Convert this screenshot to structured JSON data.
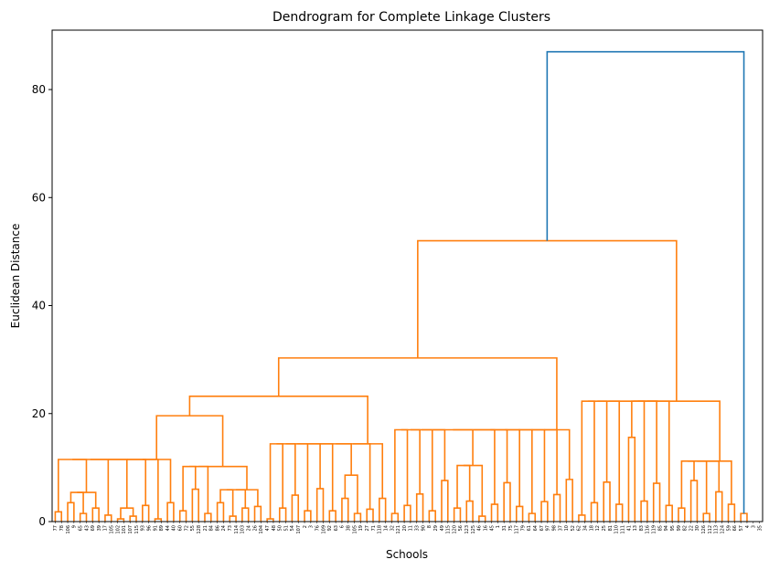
{
  "chart_data": {
    "type": "dendrogram",
    "title": "Dendrogram for Complete Linkage Clusters",
    "xlabel": "Schools",
    "ylabel": "Euclidean Distance",
    "ylim": [
      0,
      91
    ],
    "yticks": [
      0,
      20,
      40,
      60,
      80
    ],
    "grid": false,
    "colors": {
      "main_cluster": "#ff7f0e",
      "top_links": "#1f77b4"
    },
    "leaves": [
      "77",
      "78",
      "106",
      "9",
      "65",
      "43",
      "69",
      "39",
      "17",
      "105",
      "102",
      "101",
      "107",
      "115",
      "93",
      "96",
      "91",
      "89",
      "44",
      "40",
      "60",
      "72",
      "55",
      "128",
      "21",
      "84",
      "86",
      "24",
      "73",
      "114",
      "103",
      "24",
      "26",
      "104",
      "47",
      "48",
      "50",
      "51",
      "54",
      "107",
      "2",
      "3",
      "76",
      "109",
      "92",
      "63",
      "6",
      "38",
      "105",
      "19",
      "27",
      "71",
      "118",
      "14",
      "32",
      "121",
      "20",
      "11",
      "33",
      "90",
      "8",
      "29",
      "49",
      "115",
      "120",
      "56",
      "123",
      "125",
      "46",
      "16",
      "45",
      "1",
      "31",
      "75",
      "117",
      "79",
      "61",
      "64",
      "67",
      "97",
      "98",
      "37",
      "10",
      "52",
      "62",
      "34",
      "18",
      "12",
      "25",
      "81",
      "110",
      "111",
      "41",
      "13",
      "83",
      "116",
      "119",
      "85",
      "94",
      "95",
      "99",
      "82",
      "22",
      "30",
      "126",
      "112",
      "113",
      "124",
      "59",
      "66",
      "57",
      "4",
      "3",
      "35"
    ],
    "links": [
      {
        "left": 0,
        "right": 1,
        "height": 1.8
      },
      {
        "left": 2,
        "right": 3,
        "height": 3.5
      },
      {
        "left": 4,
        "right": 5,
        "height": 1.5
      },
      {
        "left": 6,
        "right": 7,
        "height": 2.5
      },
      {
        "left": 2,
        "right": 7,
        "height": 5.4
      },
      {
        "left": 8,
        "right": 9,
        "height": 1.2
      },
      {
        "left": 10,
        "right": 11,
        "height": 0.5
      },
      {
        "left": 12,
        "right": 13,
        "height": 1.0
      },
      {
        "left": 10,
        "right": 13,
        "height": 2.5
      },
      {
        "left": 14,
        "right": 15,
        "height": 3.0
      },
      {
        "left": 16,
        "right": 17,
        "height": 0.5
      },
      {
        "left": 18,
        "right": 19,
        "height": 3.5
      },
      {
        "left": 0,
        "right": 19,
        "height": 11.5
      },
      {
        "left": 20,
        "right": 21,
        "height": 2.0
      },
      {
        "left": 22,
        "right": 23,
        "height": 6.0
      },
      {
        "left": 24,
        "right": 25,
        "height": 1.5
      },
      {
        "left": 26,
        "right": 27,
        "height": 3.5
      },
      {
        "left": 28,
        "right": 29,
        "height": 1.0
      },
      {
        "left": 30,
        "right": 31,
        "height": 2.5
      },
      {
        "left": 32,
        "right": 33,
        "height": 2.8
      },
      {
        "left": 26,
        "right": 33,
        "height": 5.9
      },
      {
        "left": 20,
        "right": 33,
        "height": 10.2
      },
      {
        "left": 0,
        "right": 33,
        "height": 19.6
      },
      {
        "left": 34,
        "right": 35,
        "height": 0.5
      },
      {
        "left": 36,
        "right": 37,
        "height": 2.5
      },
      {
        "left": 38,
        "right": 39,
        "height": 4.9
      },
      {
        "left": 40,
        "right": 41,
        "height": 2.0
      },
      {
        "left": 42,
        "right": 43,
        "height": 6.1
      },
      {
        "left": 44,
        "right": 45,
        "height": 2.0
      },
      {
        "left": 46,
        "right": 47,
        "height": 4.3
      },
      {
        "left": 48,
        "right": 49,
        "height": 1.5
      },
      {
        "left": 46,
        "right": 49,
        "height": 8.6
      },
      {
        "left": 50,
        "right": 51,
        "height": 2.3
      },
      {
        "left": 52,
        "right": 53,
        "height": 4.3
      },
      {
        "left": 34,
        "right": 53,
        "height": 14.4
      },
      {
        "left": 0,
        "right": 53,
        "height": 23.2
      },
      {
        "left": 54,
        "right": 55,
        "height": 1.5
      },
      {
        "left": 56,
        "right": 57,
        "height": 3.0
      },
      {
        "left": 58,
        "right": 59,
        "height": 5.1
      },
      {
        "left": 60,
        "right": 61,
        "height": 2.0
      },
      {
        "left": 62,
        "right": 63,
        "height": 7.6
      },
      {
        "left": 64,
        "right": 65,
        "height": 2.5
      },
      {
        "left": 66,
        "right": 67,
        "height": 3.8
      },
      {
        "left": 68,
        "right": 69,
        "height": 1.0
      },
      {
        "left": 64,
        "right": 69,
        "height": 10.4
      },
      {
        "left": 70,
        "right": 71,
        "height": 3.2
      },
      {
        "left": 72,
        "right": 73,
        "height": 7.2
      },
      {
        "left": 74,
        "right": 75,
        "height": 2.8
      },
      {
        "left": 76,
        "right": 77,
        "height": 1.5
      },
      {
        "left": 78,
        "right": 79,
        "height": 3.7
      },
      {
        "left": 80,
        "right": 81,
        "height": 5.0
      },
      {
        "left": 82,
        "right": 83,
        "height": 7.8
      },
      {
        "left": 54,
        "right": 83,
        "height": 17.0
      },
      {
        "left": 0,
        "right": 83,
        "height": 30.3
      },
      {
        "left": 84,
        "right": 85,
        "height": 1.2
      },
      {
        "left": 86,
        "right": 87,
        "height": 3.5
      },
      {
        "left": 88,
        "right": 89,
        "height": 7.3
      },
      {
        "left": 90,
        "right": 91,
        "height": 3.2
      },
      {
        "left": 92,
        "right": 93,
        "height": 15.6
      },
      {
        "left": 94,
        "right": 95,
        "height": 3.8
      },
      {
        "left": 96,
        "right": 97,
        "height": 7.1
      },
      {
        "left": 98,
        "right": 99,
        "height": 3.0
      },
      {
        "left": 92,
        "right": 99,
        "height": 22.3
      },
      {
        "left": 100,
        "right": 101,
        "height": 2.5
      },
      {
        "left": 102,
        "right": 103,
        "height": 7.6
      },
      {
        "left": 104,
        "right": 105,
        "height": 1.5
      },
      {
        "left": 106,
        "right": 107,
        "height": 5.5
      },
      {
        "left": 108,
        "right": 109,
        "height": 3.2
      },
      {
        "left": 100,
        "right": 109,
        "height": 11.2
      },
      {
        "left": 84,
        "right": 109,
        "height": 22.3
      },
      {
        "left": 0,
        "right": 109,
        "height": 52.0
      },
      {
        "left": 110,
        "right": 111,
        "height": 1.5
      },
      {
        "left": 0,
        "right": 111,
        "height": 87.0
      }
    ]
  }
}
